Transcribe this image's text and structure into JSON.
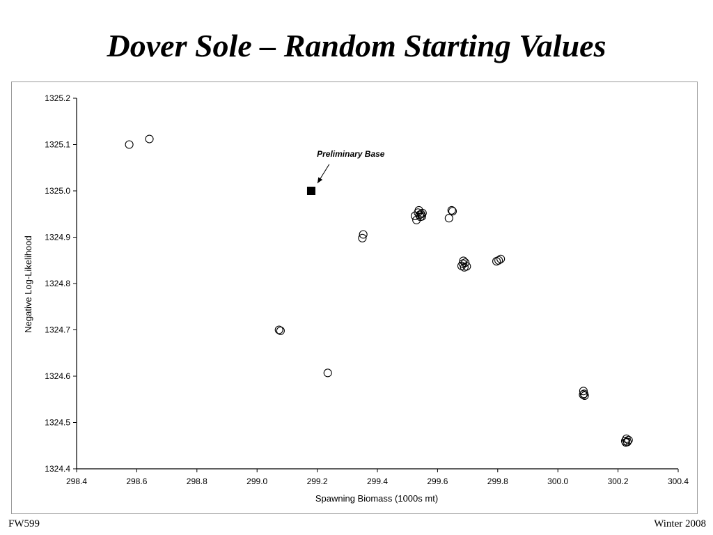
{
  "slide": {
    "title": "Dover Sole – Random Starting Values",
    "footer_left": "FW599",
    "footer_right": "Winter 2008"
  },
  "chart_data": {
    "type": "scatter",
    "title": "",
    "xlabel": "Spawning Biomass (1000s mt)",
    "ylabel": "Negative Log-Likelihood",
    "xlim": [
      298.4,
      300.4
    ],
    "ylim": [
      1324.4,
      1325.2
    ],
    "x_ticks": [
      "298.4",
      "298.6",
      "298.8",
      "299.0",
      "299.2",
      "299.4",
      "299.6",
      "299.8",
      "300.0",
      "300.2",
      "300.4"
    ],
    "y_ticks": [
      "1325.2",
      "1325.1",
      "1325.0",
      "1324.9",
      "1324.8",
      "1324.7",
      "1324.6",
      "1324.5",
      "1324.4"
    ],
    "grid": false,
    "series": [
      {
        "marker": "open-circle",
        "color": "#000000",
        "points": [
          [
            298.575,
            1325.1
          ],
          [
            298.642,
            1325.112
          ],
          [
            299.35,
            1324.898
          ],
          [
            299.353,
            1324.906
          ],
          [
            299.073,
            1324.7
          ],
          [
            299.078,
            1324.698
          ],
          [
            299.235,
            1324.607
          ],
          [
            299.525,
            1324.946
          ],
          [
            299.53,
            1324.937
          ],
          [
            299.535,
            1324.953
          ],
          [
            299.538,
            1324.958
          ],
          [
            299.54,
            1324.948
          ],
          [
            299.543,
            1324.944
          ],
          [
            299.545,
            1324.95
          ],
          [
            299.548,
            1324.945
          ],
          [
            299.55,
            1324.952
          ],
          [
            299.638,
            1324.941
          ],
          [
            299.647,
            1324.958
          ],
          [
            299.65,
            1324.956
          ],
          [
            299.68,
            1324.838
          ],
          [
            299.684,
            1324.843
          ],
          [
            299.686,
            1324.849
          ],
          [
            299.689,
            1324.835
          ],
          [
            299.692,
            1324.845
          ],
          [
            299.697,
            1324.837
          ],
          [
            299.796,
            1324.848
          ],
          [
            299.803,
            1324.85
          ],
          [
            299.81,
            1324.853
          ],
          [
            300.085,
            1324.568
          ],
          [
            300.087,
            1324.562
          ],
          [
            300.089,
            1324.558
          ],
          [
            300.084,
            1324.56
          ],
          [
            300.224,
            1324.46
          ],
          [
            300.228,
            1324.465
          ],
          [
            300.231,
            1324.458
          ],
          [
            300.235,
            1324.462
          ],
          [
            300.226,
            1324.457
          ]
        ]
      },
      {
        "marker": "filled-square",
        "color": "#000000",
        "points": [
          [
            299.18,
            1325.0
          ]
        ]
      }
    ],
    "annotations": [
      {
        "text": "Preliminary Base",
        "x": 299.3,
        "y": 1325.08,
        "arrow_to": [
          299.18,
          1325.0
        ]
      }
    ]
  }
}
